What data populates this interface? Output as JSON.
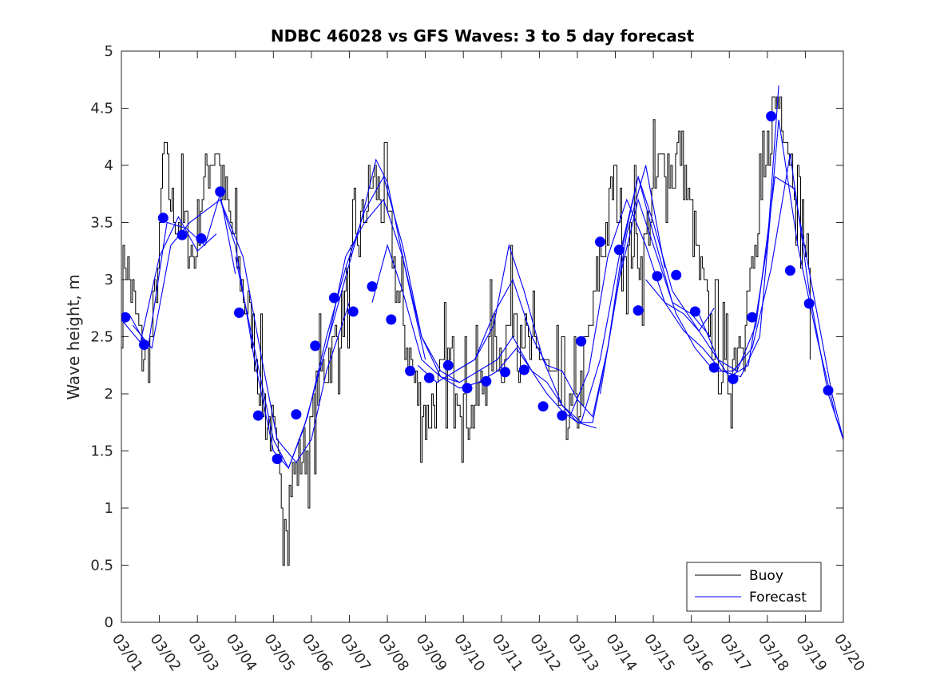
{
  "chart_data": {
    "type": "line",
    "title": "NDBC 46028 vs GFS Waves: 3 to 5 day forecast",
    "xlabel": "",
    "ylabel": "Wave height, m",
    "xlim": [
      0,
      19
    ],
    "ylim": [
      0,
      5
    ],
    "yticks": [
      "0",
      "0.5",
      "1",
      "1.5",
      "2",
      "2.5",
      "3",
      "3.5",
      "4",
      "4.5",
      "5"
    ],
    "xticks": [
      "03/01",
      "03/02",
      "03/03",
      "03/04",
      "03/05",
      "03/06",
      "03/07",
      "03/08",
      "03/09",
      "03/10",
      "03/11",
      "03/12",
      "03/13",
      "03/14",
      "03/15",
      "03/16",
      "03/17",
      "03/18",
      "03/19",
      "03/20"
    ],
    "legend": {
      "position": "bottom-right",
      "entries": [
        "Buoy",
        "Forecast"
      ]
    },
    "colors": {
      "buoy": "#000000",
      "forecast": "#0000ff",
      "markers": "#0000ff"
    },
    "buoy_anchors": [
      [
        0,
        3.0
      ],
      [
        0.1,
        3.2
      ],
      [
        0.3,
        2.8
      ],
      [
        0.5,
        2.4
      ],
      [
        0.65,
        2.3
      ],
      [
        0.8,
        2.5
      ],
      [
        1.0,
        3.3
      ],
      [
        1.1,
        4.2
      ],
      [
        1.2,
        3.9
      ],
      [
        1.35,
        3.6
      ],
      [
        1.6,
        3.5
      ],
      [
        1.8,
        3.3
      ],
      [
        1.9,
        3.1
      ],
      [
        2.0,
        3.5
      ],
      [
        2.2,
        3.9
      ],
      [
        2.4,
        4.1
      ],
      [
        2.5,
        4.2
      ],
      [
        2.6,
        3.9
      ],
      [
        2.8,
        3.6
      ],
      [
        3.0,
        3.2
      ],
      [
        3.2,
        2.9
      ],
      [
        3.4,
        2.6
      ],
      [
        3.6,
        2.2
      ],
      [
        3.8,
        1.8
      ],
      [
        4.0,
        1.6
      ],
      [
        4.1,
        1.4
      ],
      [
        4.2,
        1.1
      ],
      [
        4.35,
        1.0
      ],
      [
        4.5,
        1.3
      ],
      [
        4.7,
        1.4
      ],
      [
        4.9,
        1.5
      ],
      [
        5.0,
        1.7
      ],
      [
        5.2,
        2.1
      ],
      [
        5.4,
        2.3
      ],
      [
        5.6,
        2.4
      ],
      [
        5.8,
        2.7
      ],
      [
        6.0,
        3.0
      ],
      [
        6.2,
        3.3
      ],
      [
        6.4,
        3.6
      ],
      [
        6.6,
        3.9
      ],
      [
        6.8,
        3.7
      ],
      [
        7.0,
        3.5
      ],
      [
        7.1,
        3.3
      ],
      [
        7.2,
        3.0
      ],
      [
        7.4,
        2.6
      ],
      [
        7.6,
        2.3
      ],
      [
        7.8,
        2.0
      ],
      [
        8.0,
        1.8
      ],
      [
        8.2,
        1.9
      ],
      [
        8.4,
        2.1
      ],
      [
        8.6,
        2.3
      ],
      [
        8.8,
        2.2
      ],
      [
        9.0,
        1.9
      ],
      [
        9.2,
        1.8
      ],
      [
        9.4,
        2.0
      ],
      [
        9.6,
        2.2
      ],
      [
        9.8,
        2.5
      ],
      [
        10.0,
        2.3
      ],
      [
        10.2,
        2.6
      ],
      [
        10.4,
        2.8
      ],
      [
        10.6,
        2.5
      ],
      [
        10.8,
        2.3
      ],
      [
        11.0,
        2.4
      ],
      [
        11.2,
        2.2
      ],
      [
        11.4,
        2.0
      ],
      [
        11.6,
        1.9
      ],
      [
        11.8,
        1.8
      ],
      [
        12.0,
        1.9
      ],
      [
        12.2,
        2.3
      ],
      [
        12.4,
        2.7
      ],
      [
        12.6,
        3.2
      ],
      [
        12.8,
        3.5
      ],
      [
        12.95,
        3.9
      ],
      [
        13.1,
        3.6
      ],
      [
        13.3,
        3.2
      ],
      [
        13.5,
        3.4
      ],
      [
        13.7,
        3.1
      ],
      [
        13.9,
        3.6
      ],
      [
        14.1,
        3.9
      ],
      [
        14.3,
        4.1
      ],
      [
        14.5,
        3.9
      ],
      [
        14.7,
        4.2
      ],
      [
        14.9,
        3.7
      ],
      [
        15.1,
        3.3
      ],
      [
        15.3,
        2.9
      ],
      [
        15.5,
        2.6
      ],
      [
        15.7,
        2.3
      ],
      [
        15.9,
        2.1
      ],
      [
        16.1,
        2.3
      ],
      [
        16.3,
        2.6
      ],
      [
        16.5,
        2.9
      ],
      [
        16.7,
        3.2
      ],
      [
        16.85,
        3.6
      ],
      [
        17.0,
        4.1
      ],
      [
        17.15,
        4.5
      ],
      [
        17.3,
        4.6
      ],
      [
        17.45,
        4.4
      ],
      [
        17.6,
        4.1
      ],
      [
        17.8,
        3.8
      ],
      [
        18.0,
        3.3
      ],
      [
        18.1,
        2.9
      ],
      [
        18.15,
        2.8
      ]
    ],
    "forecast_series": [
      {
        "name": "Forecast run 1",
        "x": [
          0,
          0.5,
          1,
          1.5,
          2,
          2.5
        ],
        "y": [
          2.65,
          2.45,
          3.2,
          3.55,
          3.25,
          3.4
        ]
      },
      {
        "name": "Forecast run 2",
        "x": [
          0.2,
          0.7,
          1.2,
          1.7,
          2.2,
          2.6,
          3.0
        ],
        "y": [
          2.7,
          2.4,
          3.5,
          3.45,
          3.3,
          3.75,
          3.05
        ]
      },
      {
        "name": "Forecast run 3",
        "x": [
          0.3,
          0.8,
          1.3,
          1.8,
          2.2,
          2.6,
          3.2,
          3.7,
          4.1,
          4.6,
          5.0,
          5.4,
          6.0
        ],
        "y": [
          2.6,
          2.4,
          3.3,
          3.5,
          3.6,
          3.7,
          3.2,
          2.3,
          1.6,
          1.4,
          1.6,
          2.2,
          2.8
        ]
      },
      {
        "name": "Forecast run 4",
        "x": [
          2.6,
          3.0,
          3.5,
          4.0,
          4.4,
          4.8,
          5.3,
          5.8,
          6.3,
          6.7,
          7.0,
          7.5,
          8.0
        ],
        "y": [
          3.7,
          3.3,
          2.3,
          1.5,
          1.35,
          1.7,
          2.3,
          2.9,
          3.5,
          4.05,
          3.85,
          3.05,
          2.3
        ]
      },
      {
        "name": "Forecast run 5",
        "x": [
          3.0,
          3.5,
          4.0,
          4.4,
          4.9,
          5.4,
          5.9,
          6.4,
          6.9,
          7.4,
          7.9,
          8.4,
          8.9
        ],
        "y": [
          3.2,
          2.4,
          1.6,
          1.35,
          1.8,
          2.5,
          3.1,
          3.6,
          3.9,
          3.3,
          2.5,
          2.2,
          2.1
        ]
      },
      {
        "name": "Forecast run 6",
        "x": [
          5.4,
          5.9,
          6.4,
          6.9,
          7.4,
          7.9,
          8.4,
          8.9,
          9.4,
          9.9,
          10.4,
          10.8,
          11.2,
          11.6,
          12.0,
          12.5
        ],
        "y": [
          2.4,
          3.2,
          3.5,
          3.7,
          3.2,
          2.5,
          2.15,
          2.05,
          2.1,
          2.2,
          2.4,
          2.2,
          2.0,
          1.85,
          1.75,
          1.7
        ]
      },
      {
        "name": "Forecast run 7",
        "x": [
          6.6,
          7.0,
          7.4,
          7.9,
          8.4,
          8.9,
          9.4,
          9.9,
          10.3,
          10.8,
          11.2,
          11.6,
          12.0,
          12.4,
          12.8,
          13.3,
          13.8,
          14.3
        ],
        "y": [
          2.8,
          3.3,
          2.9,
          2.3,
          2.15,
          2.1,
          2.2,
          2.3,
          2.5,
          2.2,
          2.1,
          1.9,
          1.75,
          1.75,
          2.4,
          3.4,
          4.0,
          3.1
        ]
      },
      {
        "name": "Forecast run 8",
        "x": [
          7.8,
          8.3,
          8.8,
          9.3,
          9.8,
          10.3,
          10.8,
          11.2,
          11.6,
          12.0,
          12.4,
          12.8,
          13.2,
          13.6,
          14.0,
          14.5,
          15.0,
          15.5
        ],
        "y": [
          2.25,
          2.1,
          2.2,
          2.3,
          2.7,
          3.0,
          2.5,
          2.25,
          2.2,
          1.95,
          1.8,
          2.4,
          3.3,
          3.9,
          3.4,
          2.8,
          2.7,
          2.5
        ]
      },
      {
        "name": "Forecast run 9",
        "x": [
          8.8,
          9.3,
          9.8,
          10.2,
          10.6,
          11.1,
          11.6,
          12.1,
          12.6,
          13.1,
          13.6,
          14.0,
          14.5,
          15.0,
          15.5,
          16.0,
          16.5,
          17.0,
          17.3
        ],
        "y": [
          2.2,
          2.3,
          2.6,
          3.3,
          2.9,
          2.3,
          1.9,
          1.75,
          2.3,
          3.2,
          3.9,
          3.5,
          2.9,
          2.65,
          2.4,
          2.15,
          2.25,
          3.3,
          4.7
        ]
      },
      {
        "name": "Forecast run 10",
        "x": [
          11.8,
          12.3,
          12.8,
          13.3,
          13.8,
          14.3,
          14.8,
          15.3,
          15.8,
          16.3,
          16.8,
          17.3,
          17.8,
          18.3,
          18.8,
          19.0
        ],
        "y": [
          1.8,
          2.2,
          3.2,
          3.7,
          3.3,
          2.8,
          2.55,
          2.4,
          2.2,
          2.15,
          2.5,
          4.4,
          3.3,
          2.5,
          1.8,
          1.6
        ]
      },
      {
        "name": "Forecast run 11",
        "x": [
          12.6,
          13.1,
          13.6,
          14.1,
          14.6,
          15.1,
          15.6,
          16.1,
          16.6,
          17.1,
          17.6,
          18.1,
          18.6,
          19.0
        ],
        "y": [
          2.0,
          3.0,
          3.7,
          3.2,
          2.7,
          2.4,
          2.2,
          2.2,
          2.4,
          3.1,
          4.1,
          2.9,
          2.0,
          1.6
        ]
      },
      {
        "name": "Forecast run 12",
        "x": [
          15.2,
          15.7,
          16.2,
          16.7,
          17.2,
          17.7,
          18.2,
          18.7,
          19.0
        ],
        "y": [
          2.7,
          2.3,
          2.2,
          2.6,
          3.9,
          3.8,
          2.9,
          2.0,
          1.6
        ]
      },
      {
        "name": "Forecast run 13",
        "x": [
          13.8,
          14.3,
          14.8,
          15.2,
          15.6
        ],
        "y": [
          3.0,
          2.8,
          2.7,
          2.55,
          2.75
        ]
      }
    ],
    "markers": {
      "x": [
        0.1,
        0.6,
        1.1,
        1.6,
        2.1,
        2.6,
        3.1,
        3.6,
        4.1,
        4.6,
        5.1,
        5.6,
        6.1,
        6.6,
        7.1,
        7.6,
        8.1,
        8.6,
        9.1,
        9.6,
        10.1,
        10.6,
        11.1,
        11.6,
        12.1,
        12.6,
        13.1,
        13.6,
        14.1,
        14.6,
        15.1,
        15.6,
        16.1,
        16.6,
        17.1,
        17.6,
        18.1,
        18.6
      ],
      "y": [
        2.67,
        2.43,
        3.54,
        3.39,
        3.36,
        3.77,
        2.71,
        1.81,
        1.43,
        1.82,
        2.42,
        2.84,
        2.72,
        2.94,
        2.65,
        2.2,
        2.14,
        2.25,
        2.05,
        2.11,
        2.19,
        2.21,
        1.89,
        1.81,
        2.46,
        3.33,
        3.26,
        2.73,
        3.03,
        3.04,
        2.72,
        2.23,
        2.13,
        2.67,
        4.43,
        3.08,
        2.79,
        2.03
      ]
    }
  }
}
